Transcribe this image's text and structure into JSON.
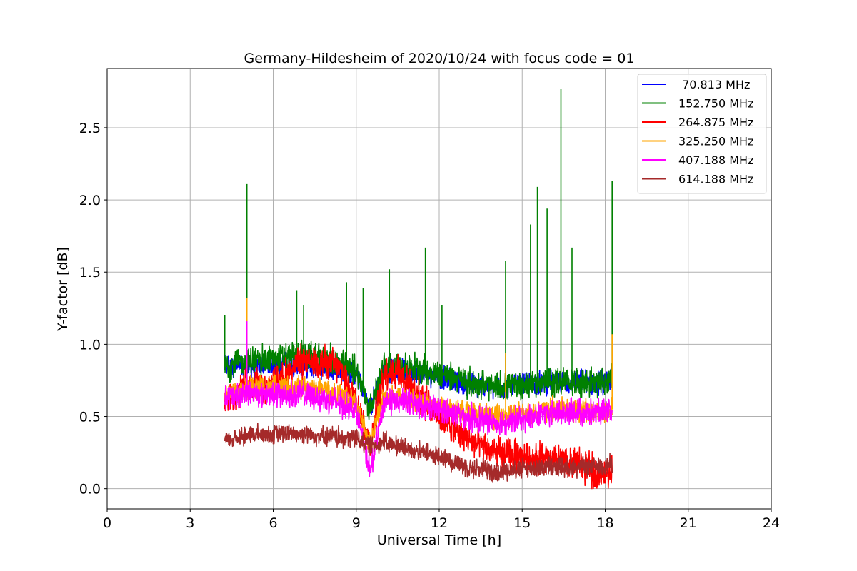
{
  "chart_data": {
    "type": "line",
    "title": "Germany-Hildesheim of 2020/10/24 with focus code = 01",
    "xlabel": "Universal Time [h]",
    "ylabel": "Y-factor [dB]",
    "xlim": [
      0,
      24
    ],
    "ylim": [
      -0.14,
      2.91
    ],
    "xticks": [
      0,
      3,
      6,
      9,
      12,
      15,
      18,
      21,
      24
    ],
    "yticks": [
      0.0,
      0.5,
      1.0,
      1.5,
      2.0,
      2.5
    ],
    "xtick_labels": [
      "0",
      "3",
      "6",
      "9",
      "12",
      "15",
      "18",
      "21",
      "24"
    ],
    "ytick_labels": [
      "0.0",
      "0.5",
      "1.0",
      "1.5",
      "2.0",
      "2.5"
    ],
    "grid": true,
    "legend_position": "top-right",
    "data_range_x": [
      4.25,
      18.25
    ],
    "series": [
      {
        "name": " 70.813 MHz",
        "color": "#0000ff",
        "x": [
          4.25,
          5.0,
          6.0,
          7.0,
          8.0,
          9.0,
          9.5,
          10.0,
          11.0,
          12.0,
          13.0,
          14.0,
          15.0,
          16.0,
          17.0,
          18.0,
          18.25
        ],
        "values": [
          0.85,
          0.84,
          0.86,
          0.86,
          0.84,
          0.8,
          0.55,
          0.82,
          0.82,
          0.78,
          0.72,
          0.7,
          0.72,
          0.74,
          0.74,
          0.74,
          0.76
        ]
      },
      {
        "name": "152.750 MHz",
        "color": "#008000",
        "x": [
          4.25,
          5.0,
          6.0,
          7.0,
          8.0,
          9.0,
          9.5,
          10.0,
          11.0,
          12.0,
          13.0,
          14.0,
          15.0,
          16.0,
          17.0,
          18.0,
          18.25
        ],
        "values": [
          0.85,
          0.88,
          0.9,
          0.92,
          0.9,
          0.82,
          0.55,
          0.84,
          0.84,
          0.8,
          0.74,
          0.7,
          0.72,
          0.74,
          0.74,
          0.74,
          0.76
        ],
        "spikes": [
          [
            4.25,
            1.2
          ],
          [
            5.05,
            2.11
          ],
          [
            6.85,
            1.37
          ],
          [
            7.1,
            1.27
          ],
          [
            8.65,
            1.43
          ],
          [
            9.25,
            1.39
          ],
          [
            10.2,
            1.52
          ],
          [
            11.5,
            1.67
          ],
          [
            12.1,
            1.27
          ],
          [
            14.4,
            1.58
          ],
          [
            15.3,
            1.83
          ],
          [
            15.55,
            2.09
          ],
          [
            15.9,
            1.94
          ],
          [
            16.4,
            2.77
          ],
          [
            16.8,
            1.67
          ],
          [
            18.25,
            2.13
          ]
        ]
      },
      {
        "name": "264.875 MHz",
        "color": "#ff0000",
        "x": [
          4.25,
          5.0,
          6.0,
          7.0,
          8.0,
          8.5,
          9.0,
          9.5,
          10.0,
          10.5,
          11.0,
          12.0,
          13.0,
          14.0,
          15.0,
          16.0,
          17.0,
          17.5,
          18.0,
          18.25
        ],
        "values": [
          0.6,
          0.7,
          0.72,
          0.88,
          0.88,
          0.8,
          0.62,
          0.3,
          0.8,
          0.82,
          0.7,
          0.5,
          0.35,
          0.25,
          0.22,
          0.2,
          0.18,
          0.12,
          0.1,
          0.12
        ]
      },
      {
        "name": "325.250 MHz",
        "color": "#ffa500",
        "x": [
          4.25,
          5.0,
          6.0,
          7.0,
          8.0,
          9.0,
          9.5,
          10.0,
          11.0,
          12.0,
          13.0,
          14.0,
          15.0,
          16.0,
          17.0,
          18.0,
          18.25
        ],
        "values": [
          0.65,
          0.7,
          0.7,
          0.7,
          0.68,
          0.6,
          0.3,
          0.65,
          0.62,
          0.58,
          0.53,
          0.5,
          0.52,
          0.55,
          0.55,
          0.52,
          0.55
        ],
        "spikes": [
          [
            5.05,
            1.32
          ],
          [
            14.4,
            0.94
          ],
          [
            18.25,
            1.07
          ]
        ]
      },
      {
        "name": "407.188 MHz",
        "color": "#ff00ff",
        "x": [
          4.25,
          5.0,
          6.0,
          7.0,
          8.0,
          9.0,
          9.5,
          10.0,
          11.0,
          12.0,
          13.0,
          14.0,
          15.0,
          16.0,
          17.0,
          18.0,
          18.25
        ],
        "values": [
          0.62,
          0.66,
          0.66,
          0.65,
          0.62,
          0.55,
          0.1,
          0.6,
          0.6,
          0.55,
          0.5,
          0.46,
          0.48,
          0.52,
          0.53,
          0.52,
          0.53
        ],
        "spikes": [
          [
            5.05,
            1.16
          ]
        ]
      },
      {
        "name": "614.188 MHz",
        "color": "#a52a2a",
        "x": [
          4.25,
          5.0,
          6.0,
          7.0,
          8.0,
          9.0,
          9.5,
          10.0,
          11.0,
          12.0,
          13.0,
          14.0,
          15.0,
          16.0,
          17.0,
          18.0,
          18.25
        ],
        "values": [
          0.33,
          0.37,
          0.38,
          0.38,
          0.36,
          0.35,
          0.3,
          0.32,
          0.27,
          0.22,
          0.15,
          0.12,
          0.14,
          0.15,
          0.15,
          0.16,
          0.18
        ]
      }
    ]
  }
}
